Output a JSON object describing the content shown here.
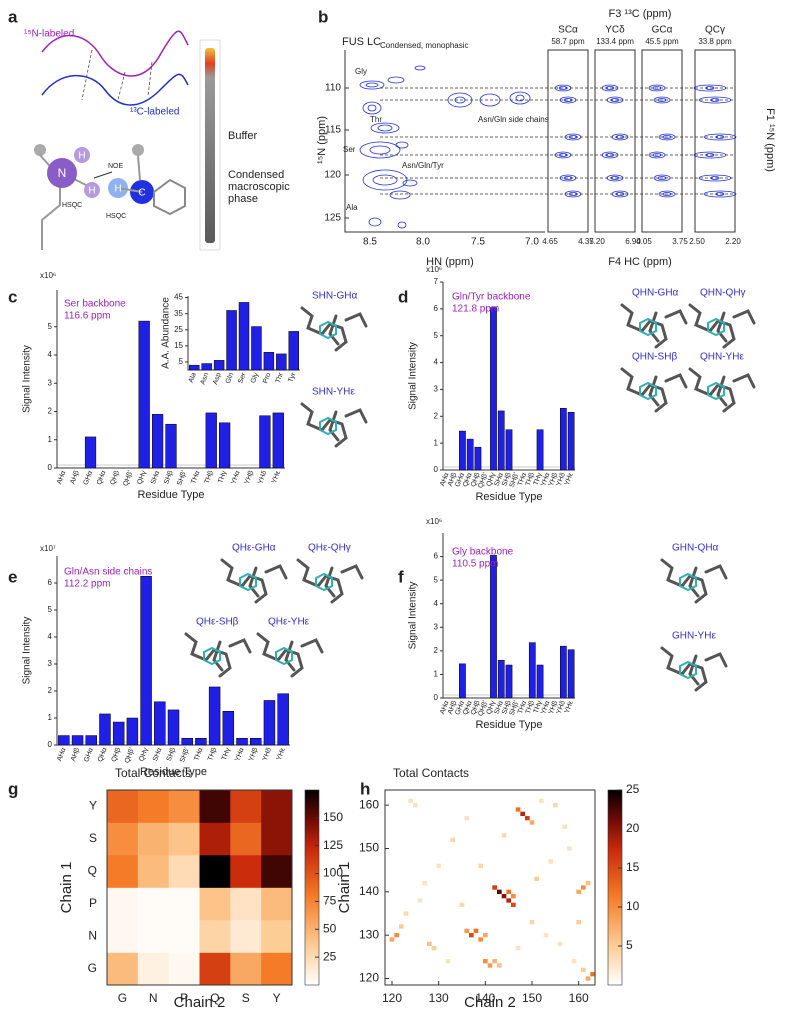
{
  "panel_labels": [
    "a",
    "b",
    "c",
    "d",
    "e",
    "f",
    "g",
    "h"
  ],
  "panel_a": {
    "n15_label": "¹⁵N-labeled",
    "c13_label": "¹³C-labeled",
    "noe": "NOE",
    "hsqc": [
      "HSQC",
      "HSQC"
    ],
    "atoms": [
      "H",
      "N",
      "H",
      "H",
      "C"
    ],
    "buffer": "Buffer",
    "condensed": [
      "Condensed",
      "macroscopic",
      "phase"
    ]
  },
  "panel_b": {
    "title": "FUS LC",
    "title_sub": "Condensed, monophasic",
    "peaks": [
      "Gly",
      "Thr",
      "Ser",
      "Asn/Gln side chains",
      "Asn/Gln/Tyr",
      "Ala"
    ],
    "yticks": [
      "110",
      "115",
      "120",
      "125"
    ],
    "xticks": [
      "8.5",
      "8.0",
      "7.5",
      "7.0"
    ],
    "xlabel": "HN (ppm)",
    "ylabel": "¹⁵N (ppm)",
    "f3_label": "F3 ¹³C (ppm)",
    "strips": [
      {
        "name": "SCα",
        "shift": "58.7 ppm",
        "ticks": [
          "4.65",
          "4.35"
        ]
      },
      {
        "name": "YCδ",
        "shift": "133.4 ppm",
        "ticks": [
          "7.20",
          "6.90"
        ]
      },
      {
        "name": "GCα",
        "shift": "45.5 ppm",
        "ticks": [
          "4.05",
          "3.75"
        ]
      },
      {
        "name": "QCγ",
        "shift": "33.8 ppm",
        "ticks": [
          "2.50",
          "2.20"
        ]
      }
    ],
    "f4_label": "F4 HC (ppm)",
    "f1_label": "F1 ¹⁵N (ppm)"
  },
  "chart_data": [
    {
      "type": "bar",
      "unit_label": "x10⁶",
      "annotation": [
        "Ser backbone",
        "116.6 ppm"
      ],
      "ylabel": "Signal Intensity",
      "xlabel": "Residue Type",
      "categories": [
        "AHα",
        "AHβ",
        "GHα",
        "QHα",
        "QHβ",
        "QHβ'",
        "QHγ",
        "SHα",
        "SHβ",
        "SHβ'",
        "THα",
        "THβ",
        "THγ",
        "YHα",
        "YHβ",
        "YHδ",
        "YHε"
      ],
      "values": [
        null,
        null,
        1.1,
        null,
        null,
        null,
        5.2,
        1.9,
        1.55,
        null,
        null,
        1.95,
        1.6,
        null,
        null,
        1.85,
        1.95
      ],
      "color": "#1f1fe6",
      "ylim": [
        0,
        6.3
      ],
      "yticks": [
        0,
        1,
        2,
        3,
        4,
        5
      ],
      "molecule_labels": [
        "SHN-GHα",
        "SHN-YHε"
      ]
    },
    {
      "type": "bar",
      "ylabel": "A.A. Abundance",
      "categories": [
        "Ala",
        "Asn",
        "Asp",
        "Gln",
        "Ser",
        "Gly",
        "Pro",
        "Thr",
        "Tyr"
      ],
      "values": [
        3,
        4,
        6,
        37,
        42,
        27,
        11,
        10,
        24
      ],
      "color": "#1f1fe6",
      "ylim": [
        0,
        46
      ],
      "yticks": [
        5,
        15,
        25,
        35,
        45
      ]
    },
    {
      "type": "bar",
      "unit_label": "x10⁶",
      "annotation": [
        "Gln/Tyr backbone",
        "121.8 ppm"
      ],
      "ylabel": "Signal Intensity",
      "xlabel": "Residue Type",
      "categories": [
        "AHα",
        "AHβ",
        "GHα",
        "QHα",
        "QHβ",
        "QHβ'",
        "QHγ",
        "SHα",
        "SHβ",
        "SHβ'",
        "THα",
        "THβ",
        "THγ",
        "YHα",
        "YHβ",
        "YHδ",
        "YHε"
      ],
      "values": [
        null,
        null,
        1.45,
        1.15,
        0.85,
        null,
        6.05,
        2.2,
        1.5,
        null,
        null,
        null,
        1.5,
        null,
        null,
        2.3,
        2.15
      ],
      "color": "#1f1fe6",
      "ylim": [
        0,
        7
      ],
      "yticks": [
        0,
        1,
        2,
        3,
        4,
        5,
        6,
        7
      ],
      "molecule_labels": [
        "QHN-GHα",
        "QHN-QHγ",
        "QHN-SHβ",
        "QHN-YHε"
      ]
    },
    {
      "type": "bar",
      "unit_label": "x10⁷",
      "annotation": [
        "Gln/Asn side chains",
        "112.2 ppm"
      ],
      "ylabel": "Signal Intensity",
      "xlabel": "Residue Type",
      "categories": [
        "AHα",
        "AHβ",
        "GHα",
        "QHα",
        "QHβ",
        "QHβ'",
        "QHγ",
        "SHα",
        "SHβ",
        "SHβ'",
        "THα",
        "THβ",
        "THγ",
        "YHα",
        "YHβ",
        "YHδ",
        "YHε"
      ],
      "values": [
        0.35,
        0.35,
        0.35,
        1.15,
        0.85,
        1.0,
        6.25,
        1.6,
        1.3,
        0.25,
        0.25,
        2.15,
        1.25,
        0.25,
        0.25,
        1.65,
        1.9
      ],
      "color": "#1f1fe6",
      "ylim": [
        0,
        7
      ],
      "yticks": [
        0,
        1,
        2,
        3,
        4,
        5,
        6
      ],
      "molecule_labels": [
        "QHε-GHα",
        "QHε-QHγ",
        "QHε-SHβ",
        "QHε-YHε"
      ]
    },
    {
      "type": "bar",
      "unit_label": "x10⁶",
      "annotation": [
        "Gly backbone",
        "110.5 ppm"
      ],
      "ylabel": "Signal Intensity",
      "xlabel": "Residue Type",
      "categories": [
        "AHα",
        "AHβ",
        "GHα",
        "QHα",
        "QHβ",
        "QHβ'",
        "QHγ",
        "SHα",
        "SHβ",
        "SHβ'",
        "THα",
        "THβ",
        "THγ",
        "YHα",
        "YHβ",
        "YHδ",
        "YHε"
      ],
      "values": [
        null,
        null,
        1.45,
        null,
        null,
        null,
        6.05,
        1.6,
        1.4,
        null,
        null,
        2.35,
        1.4,
        null,
        null,
        2.2,
        2.05
      ],
      "color": "#1f1fe6",
      "ylim": [
        0,
        7
      ],
      "yticks": [
        0,
        1,
        2,
        3,
        4,
        5,
        6
      ],
      "molecule_labels": [
        "GHN-QHα",
        "GHN-YHε"
      ]
    },
    {
      "type": "heatmap",
      "title": "Total Contacts",
      "xlabel": "Chain 2",
      "ylabel": "Chain 1",
      "x": [
        "G",
        "N",
        "P",
        "Q",
        "S",
        "Y"
      ],
      "y": [
        "G",
        "N",
        "P",
        "Q",
        "S",
        "Y"
      ],
      "z": [
        [
          45,
          10,
          5,
          110,
          55,
          80
        ],
        [
          5,
          3,
          3,
          30,
          15,
          35
        ],
        [
          5,
          3,
          3,
          40,
          20,
          45
        ],
        [
          80,
          45,
          25,
          175,
          120,
          160
        ],
        [
          70,
          50,
          40,
          130,
          90,
          140
        ],
        [
          90,
          80,
          70,
          160,
          110,
          140
        ]
      ],
      "zlim": [
        0,
        175
      ],
      "zticks": [
        25,
        50,
        75,
        100,
        125,
        150
      ]
    },
    {
      "type": "sparse_heatmap",
      "title": "Total Contacts",
      "xlabel": "Chain 2",
      "ylabel": "Chain 1",
      "x": [
        143,
        144,
        145,
        146,
        142,
        145,
        146,
        148,
        149,
        147,
        150,
        137,
        138,
        139,
        140,
        136,
        140,
        141,
        142,
        143,
        121,
        120,
        122,
        128,
        129,
        161,
        160,
        162,
        163,
        162,
        161,
        133,
        124,
        125,
        152,
        155,
        157,
        154,
        158,
        130,
        127,
        135,
        139,
        150,
        153,
        156,
        123,
        132,
        147,
        160,
        126,
        144,
        136,
        151,
        159
      ],
      "y": [
        140,
        139,
        138,
        137,
        141,
        140,
        139,
        158,
        157,
        159,
        156,
        130,
        131,
        129,
        130,
        131,
        124,
        123,
        124,
        123,
        130,
        129,
        132,
        128,
        127,
        141,
        140,
        142,
        121,
        120,
        122,
        152,
        161,
        160,
        161,
        160,
        155,
        147,
        150,
        146,
        142,
        137,
        146,
        133,
        130,
        128,
        135,
        124,
        127,
        133,
        138,
        153,
        157,
        143,
        124
      ],
      "values": [
        22,
        20,
        18,
        15,
        16,
        12,
        10,
        18,
        16,
        12,
        8,
        15,
        12,
        10,
        8,
        9,
        10,
        9,
        7,
        6,
        10,
        8,
        5,
        6,
        5,
        10,
        8,
        6,
        12,
        8,
        5,
        4,
        3,
        3,
        3,
        4,
        3,
        3,
        3,
        3,
        3,
        4,
        4,
        4,
        3,
        3,
        4,
        3,
        3,
        5,
        3,
        4,
        3,
        5,
        3
      ],
      "xlim": [
        118.5,
        163.5
      ],
      "ylim": [
        118.5,
        163.5
      ],
      "xticks": [
        120,
        130,
        140,
        150,
        160
      ],
      "yticks": [
        120,
        130,
        140,
        150,
        160
      ],
      "zlim": [
        0,
        25
      ],
      "zticks": [
        5,
        10,
        15,
        20,
        25
      ]
    }
  ]
}
